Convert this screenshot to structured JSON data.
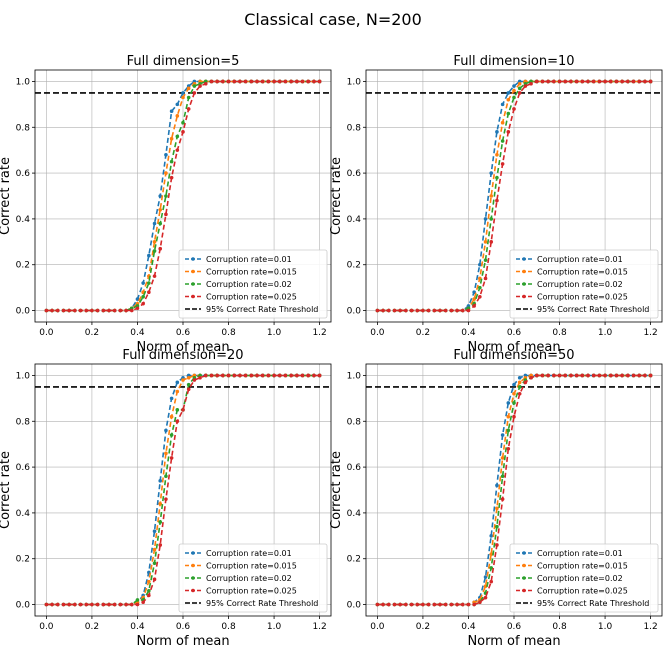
{
  "chart_data": {
    "type": "line",
    "title": "Classical case, N=200",
    "xlabel": "Norm of mean",
    "ylabel": "Correct rate",
    "xlim": [
      -0.05,
      1.25
    ],
    "ylim": [
      -0.05,
      1.05
    ],
    "xticks": [
      "0.0",
      "0.2",
      "0.4",
      "0.6",
      "0.8",
      "1.0",
      "1.2"
    ],
    "yticks": [
      "0.0",
      "0.2",
      "0.4",
      "0.6",
      "0.8",
      "1.0"
    ],
    "x": [
      0.0,
      0.025,
      0.05,
      0.075,
      0.1,
      0.125,
      0.15,
      0.175,
      0.2,
      0.225,
      0.25,
      0.275,
      0.3,
      0.325,
      0.35,
      0.375,
      0.4,
      0.425,
      0.45,
      0.475,
      0.5,
      0.525,
      0.55,
      0.575,
      0.6,
      0.625,
      0.65,
      0.675,
      0.7,
      0.725,
      0.75,
      0.775,
      0.8,
      0.825,
      0.85,
      0.875,
      0.9,
      0.925,
      0.95,
      0.975,
      1.0,
      1.025,
      1.05,
      1.075,
      1.1,
      1.125,
      1.15,
      1.175,
      1.2
    ],
    "threshold": {
      "value": 0.95,
      "label": "95% Correct Rate Threshold",
      "color": "#000000"
    },
    "series_styles": [
      {
        "name": "Corruption rate=0.01",
        "color": "#1f77b4"
      },
      {
        "name": "Corruption rate=0.015",
        "color": "#ff7f0e"
      },
      {
        "name": "Corruption rate=0.02",
        "color": "#2ca02c"
      },
      {
        "name": "Corruption rate=0.025",
        "color": "#d62728"
      }
    ],
    "legend_location": "lower right",
    "grid": true,
    "panels": [
      {
        "title": "Full dimension=5",
        "series": [
          {
            "name": "Corruption rate=0.01",
            "values": [
              0,
              0,
              0,
              0,
              0,
              0,
              0,
              0,
              0,
              0,
              0,
              0,
              0,
              0,
              0,
              0.01,
              0.05,
              0.12,
              0.24,
              0.38,
              0.5,
              0.68,
              0.87,
              0.9,
              0.95,
              0.98,
              1,
              1,
              1,
              1,
              1,
              1,
              1,
              1,
              1,
              1,
              1,
              1,
              1,
              1,
              1,
              1,
              1,
              1,
              1,
              1,
              1,
              1,
              1
            ]
          },
          {
            "name": "Corruption rate=0.015",
            "values": [
              0,
              0,
              0,
              0,
              0,
              0,
              0,
              0,
              0,
              0,
              0,
              0,
              0,
              0,
              0,
              0.01,
              0.03,
              0.08,
              0.15,
              0.3,
              0.44,
              0.6,
              0.75,
              0.85,
              0.93,
              0.97,
              0.99,
              1,
              1,
              1,
              1,
              1,
              1,
              1,
              1,
              1,
              1,
              1,
              1,
              1,
              1,
              1,
              1,
              1,
              1,
              1,
              1,
              1,
              1
            ]
          },
          {
            "name": "Corruption rate=0.02",
            "values": [
              0,
              0,
              0,
              0,
              0,
              0,
              0,
              0,
              0,
              0,
              0,
              0,
              0,
              0,
              0,
              0.01,
              0.02,
              0.06,
              0.12,
              0.26,
              0.38,
              0.5,
              0.65,
              0.76,
              0.82,
              0.93,
              0.98,
              0.99,
              1,
              1,
              1,
              1,
              1,
              1,
              1,
              1,
              1,
              1,
              1,
              1,
              1,
              1,
              1,
              1,
              1,
              1,
              1,
              1,
              1
            ]
          },
          {
            "name": "Corruption rate=0.025",
            "values": [
              0,
              0,
              0,
              0,
              0,
              0,
              0,
              0,
              0,
              0,
              0,
              0,
              0,
              0,
              0,
              0,
              0.01,
              0.03,
              0.08,
              0.15,
              0.27,
              0.42,
              0.58,
              0.7,
              0.78,
              0.88,
              0.95,
              0.98,
              0.99,
              1,
              1,
              1,
              1,
              1,
              1,
              1,
              1,
              1,
              1,
              1,
              1,
              1,
              1,
              1,
              1,
              1,
              1,
              1,
              1
            ]
          }
        ]
      },
      {
        "title": "Full dimension=10",
        "series": [
          {
            "name": "Corruption rate=0.01",
            "values": [
              0,
              0,
              0,
              0,
              0,
              0,
              0,
              0,
              0,
              0,
              0,
              0,
              0,
              0,
              0,
              0,
              0.02,
              0.08,
              0.2,
              0.4,
              0.6,
              0.78,
              0.9,
              0.95,
              0.98,
              1,
              1,
              1,
              1,
              1,
              1,
              1,
              1,
              1,
              1,
              1,
              1,
              1,
              1,
              1,
              1,
              1,
              1,
              1,
              1,
              1,
              1,
              1,
              1
            ]
          },
          {
            "name": "Corruption rate=0.015",
            "values": [
              0,
              0,
              0,
              0,
              0,
              0,
              0,
              0,
              0,
              0,
              0,
              0,
              0,
              0,
              0,
              0,
              0.01,
              0.05,
              0.14,
              0.3,
              0.5,
              0.68,
              0.82,
              0.92,
              0.96,
              0.99,
              1,
              1,
              1,
              1,
              1,
              1,
              1,
              1,
              1,
              1,
              1,
              1,
              1,
              1,
              1,
              1,
              1,
              1,
              1,
              1,
              1,
              1,
              1
            ]
          },
          {
            "name": "Corruption rate=0.02",
            "values": [
              0,
              0,
              0,
              0,
              0,
              0,
              0,
              0,
              0,
              0,
              0,
              0,
              0,
              0,
              0,
              0,
              0.01,
              0.03,
              0.1,
              0.22,
              0.4,
              0.58,
              0.74,
              0.86,
              0.93,
              0.97,
              0.99,
              1,
              1,
              1,
              1,
              1,
              1,
              1,
              1,
              1,
              1,
              1,
              1,
              1,
              1,
              1,
              1,
              1,
              1,
              1,
              1,
              1,
              1
            ]
          },
          {
            "name": "Corruption rate=0.025",
            "values": [
              0,
              0,
              0,
              0,
              0,
              0,
              0,
              0,
              0,
              0,
              0,
              0,
              0,
              0,
              0,
              0,
              0,
              0.02,
              0.06,
              0.14,
              0.3,
              0.48,
              0.64,
              0.78,
              0.88,
              0.95,
              0.98,
              0.99,
              1,
              1,
              1,
              1,
              1,
              1,
              1,
              1,
              1,
              1,
              1,
              1,
              1,
              1,
              1,
              1,
              1,
              1,
              1,
              1,
              1
            ]
          }
        ]
      },
      {
        "title": "Full dimension=20",
        "series": [
          {
            "name": "Corruption rate=0.01",
            "values": [
              0,
              0,
              0,
              0,
              0,
              0,
              0,
              0,
              0,
              0,
              0,
              0,
              0,
              0,
              0,
              0,
              0.01,
              0.04,
              0.14,
              0.32,
              0.54,
              0.76,
              0.9,
              0.97,
              0.99,
              1,
              1,
              1,
              1,
              1,
              1,
              1,
              1,
              1,
              1,
              1,
              1,
              1,
              1,
              1,
              1,
              1,
              1,
              1,
              1,
              1,
              1,
              1,
              1
            ]
          },
          {
            "name": "Corruption rate=0.015",
            "values": [
              0,
              0,
              0,
              0,
              0,
              0,
              0,
              0,
              0,
              0,
              0,
              0,
              0,
              0,
              0,
              0,
              0.01,
              0.03,
              0.1,
              0.24,
              0.44,
              0.66,
              0.82,
              0.93,
              0.98,
              0.99,
              1,
              1,
              1,
              1,
              1,
              1,
              1,
              1,
              1,
              1,
              1,
              1,
              1,
              1,
              1,
              1,
              1,
              1,
              1,
              1,
              1,
              1,
              1
            ]
          },
          {
            "name": "Corruption rate=0.02",
            "values": [
              0,
              0,
              0,
              0,
              0,
              0,
              0,
              0,
              0,
              0,
              0,
              0,
              0,
              0,
              0,
              0,
              0.02,
              0.02,
              0.06,
              0.18,
              0.36,
              0.56,
              0.74,
              0.85,
              0.85,
              0.96,
              0.99,
              1,
              1,
              1,
              1,
              1,
              1,
              1,
              1,
              1,
              1,
              1,
              1,
              1,
              1,
              1,
              1,
              1,
              1,
              1,
              1,
              1,
              1
            ]
          },
          {
            "name": "Corruption rate=0.025",
            "values": [
              0,
              0,
              0,
              0,
              0,
              0,
              0,
              0,
              0,
              0,
              0,
              0,
              0,
              0,
              0,
              0,
              0,
              0.01,
              0.04,
              0.11,
              0.26,
              0.46,
              0.64,
              0.8,
              0.85,
              0.94,
              0.98,
              0.99,
              1,
              1,
              1,
              1,
              1,
              1,
              1,
              1,
              1,
              1,
              1,
              1,
              1,
              1,
              1,
              1,
              1,
              1,
              1,
              1,
              1
            ]
          }
        ]
      },
      {
        "title": "Full dimension=50",
        "series": [
          {
            "name": "Corruption rate=0.01",
            "values": [
              0,
              0,
              0,
              0,
              0,
              0,
              0,
              0,
              0,
              0,
              0,
              0,
              0,
              0,
              0,
              0,
              0,
              0.01,
              0.03,
              0.12,
              0.3,
              0.52,
              0.74,
              0.88,
              0.96,
              0.99,
              1,
              1,
              1,
              1,
              1,
              1,
              1,
              1,
              1,
              1,
              1,
              1,
              1,
              1,
              1,
              1,
              1,
              1,
              1,
              1,
              1,
              1,
              1
            ]
          },
          {
            "name": "Corruption rate=0.015",
            "values": [
              0,
              0,
              0,
              0,
              0,
              0,
              0,
              0,
              0,
              0,
              0,
              0,
              0,
              0,
              0,
              0,
              0,
              0.01,
              0.02,
              0.08,
              0.22,
              0.42,
              0.64,
              0.82,
              0.92,
              0.97,
              0.99,
              1,
              1,
              1,
              1,
              1,
              1,
              1,
              1,
              1,
              1,
              1,
              1,
              1,
              1,
              1,
              1,
              1,
              1,
              1,
              1,
              1,
              1
            ]
          },
          {
            "name": "Corruption rate=0.02",
            "values": [
              0,
              0,
              0,
              0,
              0,
              0,
              0,
              0,
              0,
              0,
              0,
              0,
              0,
              0,
              0,
              0,
              0,
              0,
              0.01,
              0.05,
              0.16,
              0.34,
              0.56,
              0.76,
              0.88,
              0.95,
              0.98,
              0.99,
              1,
              1,
              1,
              1,
              1,
              1,
              1,
              1,
              1,
              1,
              1,
              1,
              1,
              1,
              1,
              1,
              1,
              1,
              1,
              1,
              1
            ]
          },
          {
            "name": "Corruption rate=0.025",
            "values": [
              0,
              0,
              0,
              0,
              0,
              0,
              0,
              0,
              0,
              0,
              0,
              0,
              0,
              0,
              0,
              0,
              0,
              0,
              0.01,
              0.03,
              0.1,
              0.26,
              0.46,
              0.68,
              0.82,
              0.92,
              0.97,
              0.99,
              1,
              1,
              1,
              1,
              1,
              1,
              1,
              1,
              1,
              1,
              1,
              1,
              1,
              1,
              1,
              1,
              1,
              1,
              1,
              1,
              1
            ]
          }
        ]
      }
    ]
  }
}
